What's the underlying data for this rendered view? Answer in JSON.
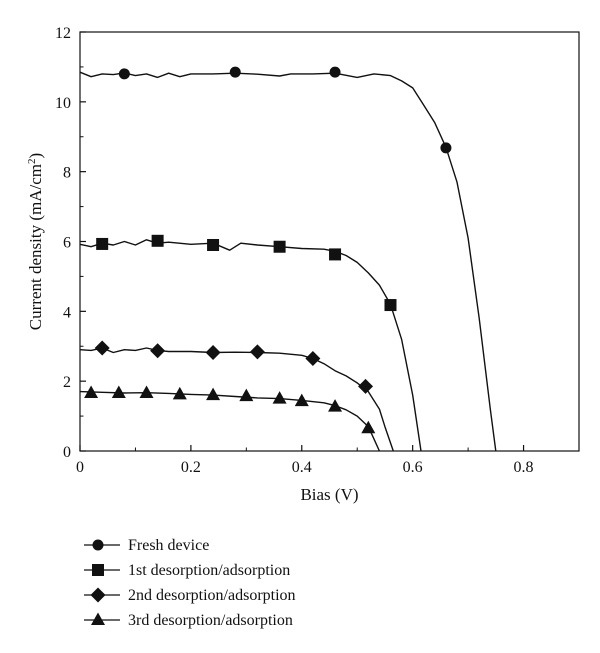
{
  "chart_data": {
    "type": "line",
    "xlabel": "Bias (V)",
    "ylabel_main": "Current density (mA/cm",
    "ylabel_sup": "2",
    "ylabel_tail": ")",
    "xlim": [
      0,
      0.9
    ],
    "ylim": [
      0,
      12
    ],
    "x_ticks": [
      0,
      0.2,
      0.4,
      0.6,
      0.8
    ],
    "x_tick_labels": [
      "0",
      "0.2",
      "0.4",
      "0.6",
      "0.8"
    ],
    "y_ticks": [
      0,
      2,
      4,
      6,
      8,
      10,
      12
    ],
    "y_tick_labels": [
      "0",
      "2",
      "4",
      "6",
      "8",
      "10",
      "12"
    ],
    "grid": false,
    "legend_position": "below",
    "series": [
      {
        "name": "Fresh device",
        "marker": "circle",
        "curve": [
          [
            0,
            10.85
          ],
          [
            0.02,
            10.72
          ],
          [
            0.04,
            10.8
          ],
          [
            0.06,
            10.78
          ],
          [
            0.08,
            10.83
          ],
          [
            0.1,
            10.75
          ],
          [
            0.12,
            10.8
          ],
          [
            0.14,
            10.7
          ],
          [
            0.16,
            10.82
          ],
          [
            0.18,
            10.72
          ],
          [
            0.2,
            10.8
          ],
          [
            0.24,
            10.8
          ],
          [
            0.28,
            10.82
          ],
          [
            0.32,
            10.79
          ],
          [
            0.36,
            10.74
          ],
          [
            0.38,
            10.8
          ],
          [
            0.42,
            10.8
          ],
          [
            0.46,
            10.82
          ],
          [
            0.5,
            10.7
          ],
          [
            0.53,
            10.8
          ],
          [
            0.56,
            10.75
          ],
          [
            0.58,
            10.6
          ],
          [
            0.6,
            10.4
          ],
          [
            0.62,
            9.9
          ],
          [
            0.64,
            9.4
          ],
          [
            0.66,
            8.7
          ],
          [
            0.68,
            7.7
          ],
          [
            0.7,
            6.1
          ],
          [
            0.72,
            3.8
          ],
          [
            0.74,
            1.2
          ],
          [
            0.75,
            0
          ]
        ],
        "points": [
          [
            0.08,
            10.8
          ],
          [
            0.28,
            10.85
          ],
          [
            0.46,
            10.85
          ],
          [
            0.66,
            8.68
          ]
        ]
      },
      {
        "name": "1st desorption/adsorption",
        "marker": "square",
        "curve": [
          [
            0,
            5.92
          ],
          [
            0.02,
            5.85
          ],
          [
            0.04,
            5.95
          ],
          [
            0.06,
            5.9
          ],
          [
            0.08,
            6.0
          ],
          [
            0.1,
            5.9
          ],
          [
            0.12,
            6.05
          ],
          [
            0.14,
            5.95
          ],
          [
            0.16,
            5.98
          ],
          [
            0.2,
            5.92
          ],
          [
            0.24,
            5.95
          ],
          [
            0.27,
            5.75
          ],
          [
            0.29,
            5.95
          ],
          [
            0.32,
            5.9
          ],
          [
            0.36,
            5.85
          ],
          [
            0.4,
            5.8
          ],
          [
            0.44,
            5.78
          ],
          [
            0.46,
            5.72
          ],
          [
            0.48,
            5.6
          ],
          [
            0.5,
            5.4
          ],
          [
            0.52,
            5.1
          ],
          [
            0.54,
            4.75
          ],
          [
            0.56,
            4.2
          ],
          [
            0.58,
            3.2
          ],
          [
            0.6,
            1.6
          ],
          [
            0.615,
            0
          ]
        ],
        "points": [
          [
            0.04,
            5.93
          ],
          [
            0.14,
            6.02
          ],
          [
            0.24,
            5.9
          ],
          [
            0.36,
            5.85
          ],
          [
            0.46,
            5.63
          ],
          [
            0.56,
            4.18
          ]
        ]
      },
      {
        "name": "2nd desorption/adsorption",
        "marker": "diamond",
        "curve": [
          [
            0,
            2.9
          ],
          [
            0.02,
            2.88
          ],
          [
            0.04,
            2.95
          ],
          [
            0.06,
            2.82
          ],
          [
            0.08,
            2.9
          ],
          [
            0.1,
            2.88
          ],
          [
            0.12,
            2.95
          ],
          [
            0.14,
            2.88
          ],
          [
            0.16,
            2.85
          ],
          [
            0.2,
            2.85
          ],
          [
            0.24,
            2.82
          ],
          [
            0.28,
            2.83
          ],
          [
            0.32,
            2.82
          ],
          [
            0.36,
            2.8
          ],
          [
            0.4,
            2.74
          ],
          [
            0.42,
            2.65
          ],
          [
            0.44,
            2.5
          ],
          [
            0.46,
            2.3
          ],
          [
            0.48,
            2.15
          ],
          [
            0.5,
            1.95
          ],
          [
            0.52,
            1.7
          ],
          [
            0.54,
            1.2
          ],
          [
            0.55,
            0.7
          ],
          [
            0.565,
            0
          ]
        ],
        "points": [
          [
            0.04,
            2.95
          ],
          [
            0.14,
            2.87
          ],
          [
            0.24,
            2.82
          ],
          [
            0.32,
            2.84
          ],
          [
            0.42,
            2.65
          ],
          [
            0.515,
            1.85
          ]
        ]
      },
      {
        "name": "3rd desorption/adsorption",
        "marker": "triangle",
        "curve": [
          [
            0,
            1.7
          ],
          [
            0.04,
            1.68
          ],
          [
            0.08,
            1.66
          ],
          [
            0.12,
            1.67
          ],
          [
            0.16,
            1.65
          ],
          [
            0.2,
            1.62
          ],
          [
            0.24,
            1.6
          ],
          [
            0.28,
            1.56
          ],
          [
            0.32,
            1.52
          ],
          [
            0.36,
            1.5
          ],
          [
            0.4,
            1.45
          ],
          [
            0.44,
            1.38
          ],
          [
            0.46,
            1.3
          ],
          [
            0.48,
            1.18
          ],
          [
            0.5,
            1.0
          ],
          [
            0.52,
            0.7
          ],
          [
            0.53,
            0.35
          ],
          [
            0.54,
            0
          ]
        ],
        "points": [
          [
            0.02,
            1.66
          ],
          [
            0.07,
            1.66
          ],
          [
            0.12,
            1.66
          ],
          [
            0.18,
            1.62
          ],
          [
            0.24,
            1.6
          ],
          [
            0.3,
            1.57
          ],
          [
            0.36,
            1.5
          ],
          [
            0.4,
            1.43
          ],
          [
            0.46,
            1.27
          ],
          [
            0.52,
            0.65
          ]
        ]
      }
    ]
  }
}
